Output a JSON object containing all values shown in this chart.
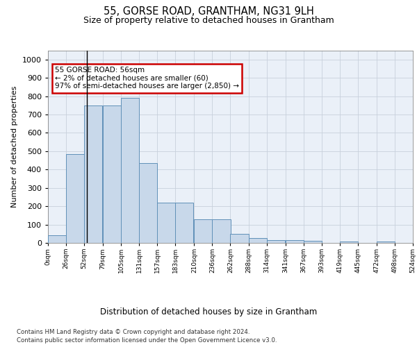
{
  "title": "55, GORSE ROAD, GRANTHAM, NG31 9LH",
  "subtitle": "Size of property relative to detached houses in Grantham",
  "xlabel": "Distribution of detached houses by size in Grantham",
  "ylabel": "Number of detached properties",
  "bar_starts": [
    0,
    26,
    52,
    79,
    105,
    131,
    157,
    183,
    210,
    236,
    262,
    288,
    314,
    341,
    367,
    393,
    419,
    445,
    472,
    498
  ],
  "bar_heights": [
    40,
    485,
    750,
    750,
    790,
    435,
    218,
    218,
    127,
    127,
    50,
    27,
    16,
    16,
    10,
    0,
    9,
    0,
    9,
    0
  ],
  "bin_width": 26,
  "bar_color": "#c8d8ea",
  "bar_edge_color": "#6090b8",
  "vline_x": 56,
  "vline_color": "#000000",
  "ylim": [
    0,
    1050
  ],
  "tick_labels": [
    "0sqm",
    "26sqm",
    "52sqm",
    "79sqm",
    "105sqm",
    "131sqm",
    "157sqm",
    "183sqm",
    "210sqm",
    "236sqm",
    "262sqm",
    "288sqm",
    "314sqm",
    "341sqm",
    "367sqm",
    "393sqm",
    "419sqm",
    "445sqm",
    "472sqm",
    "498sqm",
    "524sqm"
  ],
  "annotation_text": "55 GORSE ROAD: 56sqm\n← 2% of detached houses are smaller (60)\n97% of semi-detached houses are larger (2,850) →",
  "annotation_box_color": "#ffffff",
  "annotation_box_edge": "#cc0000",
  "footer1": "Contains HM Land Registry data © Crown copyright and database right 2024.",
  "footer2": "Contains public sector information licensed under the Open Government Licence v3.0.",
  "background_color": "#ffffff",
  "grid_color": "#c8d0dc",
  "axis_bg_color": "#eaf0f8"
}
